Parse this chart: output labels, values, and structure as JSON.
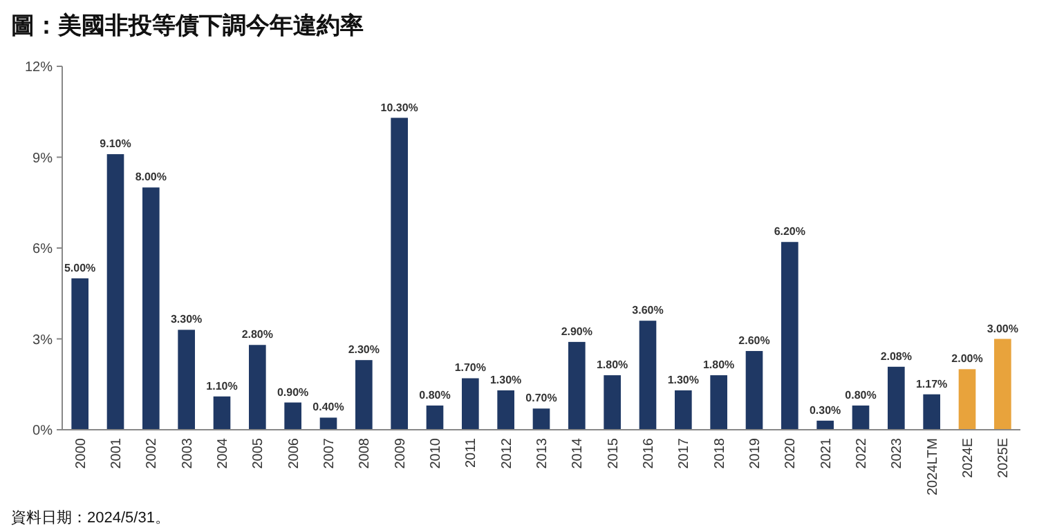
{
  "chart_data": {
    "type": "bar",
    "title": "圖：美國非投等債下調今年違約率",
    "categories": [
      "2000",
      "2001",
      "2002",
      "2003",
      "2004",
      "2005",
      "2006",
      "2007",
      "2008",
      "2009",
      "2010",
      "2011",
      "2012",
      "2013",
      "2014",
      "2015",
      "2016",
      "2017",
      "2018",
      "2019",
      "2020",
      "2021",
      "2022",
      "2023",
      "2024LTM",
      "2024E",
      "2025E"
    ],
    "values": [
      5.0,
      9.1,
      8.0,
      3.3,
      1.1,
      2.8,
      0.9,
      0.4,
      2.3,
      10.3,
      0.8,
      1.7,
      1.3,
      0.7,
      2.9,
      1.8,
      3.6,
      1.3,
      1.8,
      2.6,
      6.2,
      0.3,
      0.8,
      2.08,
      1.17,
      2.0,
      3.0
    ],
    "value_labels": [
      "5.00%",
      "9.10%",
      "8.00%",
      "3.30%",
      "1.10%",
      "2.80%",
      "0.90%",
      "0.40%",
      "2.30%",
      "10.30%",
      "0.80%",
      "1.70%",
      "1.30%",
      "0.70%",
      "2.90%",
      "1.80%",
      "3.60%",
      "1.30%",
      "1.80%",
      "2.60%",
      "6.20%",
      "0.30%",
      "0.80%",
      "2.08%",
      "1.17%",
      "2.00%",
      "3.00%"
    ],
    "colors": [
      "#1f3864",
      "#1f3864",
      "#1f3864",
      "#1f3864",
      "#1f3864",
      "#1f3864",
      "#1f3864",
      "#1f3864",
      "#1f3864",
      "#1f3864",
      "#1f3864",
      "#1f3864",
      "#1f3864",
      "#1f3864",
      "#1f3864",
      "#1f3864",
      "#1f3864",
      "#1f3864",
      "#1f3864",
      "#1f3864",
      "#1f3864",
      "#1f3864",
      "#1f3864",
      "#1f3864",
      "#1f3864",
      "#e8a33c",
      "#e8a33c"
    ],
    "ylim": [
      0,
      12
    ],
    "yticks": [
      {
        "value": 0,
        "label": "0%"
      },
      {
        "value": 3,
        "label": "3%"
      },
      {
        "value": 6,
        "label": "6%"
      },
      {
        "value": 9,
        "label": "9%"
      },
      {
        "value": 12,
        "label": "12%"
      }
    ],
    "annotations": [
      "資料日期：2024/5/31。"
    ]
  }
}
